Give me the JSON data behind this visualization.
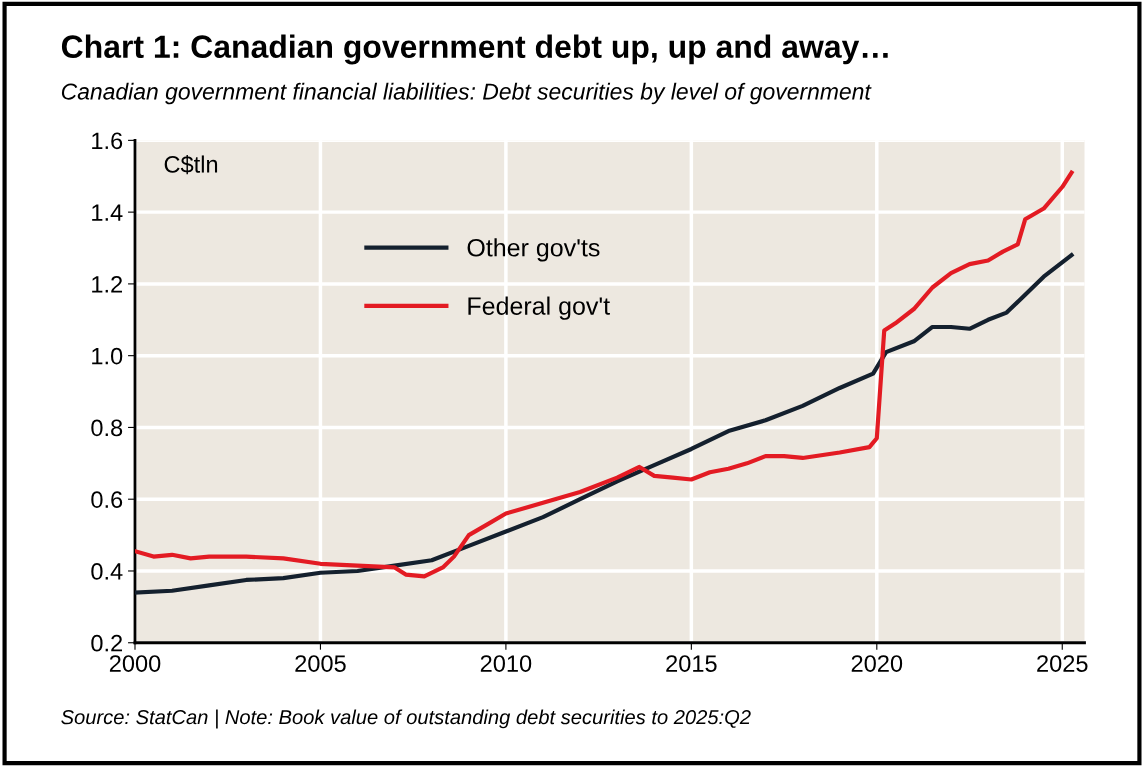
{
  "chart_data": {
    "type": "line",
    "title": "Chart 1: Canadian government debt up, up and away…",
    "subtitle": "Canadian government financial liabilities: Debt securities by level of government",
    "ylabel": "C$tln",
    "annotations": [
      "Source: StatCan | Note: Book value of outstanding debt securities to 2025:Q2"
    ],
    "series": [
      {
        "name": "Other gov'ts",
        "color": "#14202e",
        "x": [
          2000,
          2001,
          2002,
          2003,
          2004,
          2005,
          2006,
          2007,
          2008,
          2009,
          2010,
          2011,
          2012,
          2013,
          2014,
          2015,
          2016,
          2017,
          2018,
          2019,
          2019.9,
          2020.25,
          2021,
          2021.5,
          2022,
          2022.5,
          2023,
          2023.5,
          2024,
          2024.5,
          2025.25
        ],
        "values": [
          0.34,
          0.345,
          0.36,
          0.375,
          0.38,
          0.395,
          0.4,
          0.415,
          0.43,
          0.47,
          0.51,
          0.55,
          0.6,
          0.65,
          0.695,
          0.74,
          0.79,
          0.82,
          0.86,
          0.91,
          0.95,
          1.01,
          1.04,
          1.08,
          1.08,
          1.075,
          1.1,
          1.12,
          1.17,
          1.22,
          1.28
        ]
      },
      {
        "name": "Federal gov't",
        "color": "#e31b23",
        "x": [
          2000,
          2000.5,
          2001,
          2001.5,
          2002,
          2003,
          2004,
          2005,
          2006,
          2007,
          2007.3,
          2007.8,
          2008.3,
          2008.6,
          2009,
          2009.5,
          2010,
          2011,
          2012,
          2013,
          2013.6,
          2014,
          2014.5,
          2015,
          2015.5,
          2016,
          2016.5,
          2017,
          2017.5,
          2018,
          2019,
          2019.8,
          2020,
          2020.2,
          2020.5,
          2021,
          2021.5,
          2022,
          2022.5,
          2023,
          2023.4,
          2023.8,
          2024,
          2024.5,
          2025,
          2025.25
        ],
        "values": [
          0.455,
          0.44,
          0.445,
          0.435,
          0.44,
          0.44,
          0.435,
          0.42,
          0.415,
          0.41,
          0.39,
          0.385,
          0.41,
          0.44,
          0.5,
          0.53,
          0.56,
          0.59,
          0.62,
          0.66,
          0.69,
          0.665,
          0.66,
          0.655,
          0.675,
          0.685,
          0.7,
          0.72,
          0.72,
          0.715,
          0.73,
          0.745,
          0.77,
          1.07,
          1.09,
          1.13,
          1.19,
          1.23,
          1.255,
          1.265,
          1.29,
          1.31,
          1.38,
          1.41,
          1.47,
          1.51
        ]
      }
    ],
    "xlim": [
      2000,
      2025.6
    ],
    "xticks": [
      2000,
      2005,
      2010,
      2015,
      2020,
      2025
    ],
    "ylim": [
      0.2,
      1.6
    ],
    "yticks": [
      {
        "value": 0.2,
        "label": "0.2"
      },
      {
        "value": 0.4,
        "label": "0.4"
      },
      {
        "value": 0.6,
        "label": "0.6"
      },
      {
        "value": 0.8,
        "label": "0.8"
      },
      {
        "value": 1.0,
        "label": "1.0"
      },
      {
        "value": 1.2,
        "label": "1.2"
      },
      {
        "value": 1.4,
        "label": "1.4"
      },
      {
        "value": 1.6,
        "label": "1.6"
      }
    ],
    "grid": true,
    "legend": "top left",
    "marker": "none",
    "line_style": "solid"
  }
}
